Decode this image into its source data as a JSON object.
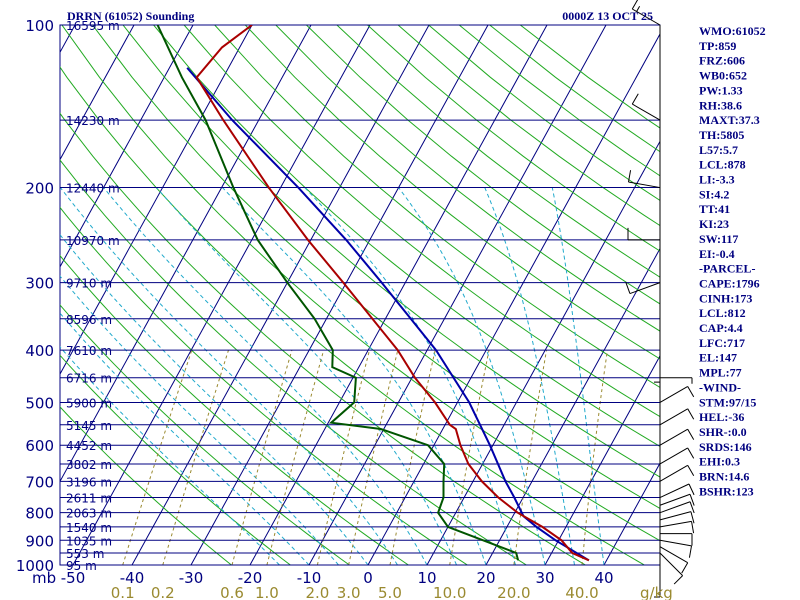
{
  "header": {
    "station": "DRRN (61052) Sounding",
    "time": "0000Z 13 OCT 25"
  },
  "indices": [
    "WMO:61052",
    "TP:859",
    "FRZ:606",
    "WB0:652",
    "PW:1.33",
    "RH:38.6",
    "MAXT:37.3",
    "TH:5805",
    "L57:5.7",
    "LCL:878",
    "LI:-3.3",
    "SI:4.2",
    "TT:41",
    "KI:23",
    "SW:117",
    "EI:-0.4",
    "-PARCEL-",
    "CAPE:1796",
    "CINH:173",
    "LCL:812",
    "CAP:4.4",
    "LFC:717",
    "EL:147",
    "MPL:77",
    "-WIND-",
    "STM:97/15",
    "HEL:-36",
    "SHR-:0.0",
    "SRDS:146",
    "EHI:0.3",
    "BRN:14.6",
    "BSHR:123"
  ],
  "colors": {
    "isobar": "#000080",
    "isotherm": "#000080",
    "dry_adiabat": "#22aa22",
    "moist_adiabat": "#22aacc",
    "mixing_ratio": "#9a8a30",
    "temperature": "#aa0000",
    "dewpoint": "#005500",
    "parcel": "#0000aa",
    "wind": "#000000"
  },
  "chart_data": {
    "type": "skew-t",
    "pressure_axis": {
      "ticks": [
        100,
        200,
        300,
        400,
        500,
        600,
        700,
        800,
        900,
        1000
      ],
      "labels": [
        "100",
        "200",
        "300",
        "400",
        "500",
        "600",
        "700",
        "800",
        "900",
        "1000"
      ],
      "range": [
        100,
        1000
      ],
      "scale": "log"
    },
    "temperature_axis": {
      "unit_label": "mb",
      "ticks": [
        -50,
        -40,
        -30,
        -20,
        -10,
        0,
        10,
        20,
        30,
        40
      ],
      "labels": [
        "-50",
        "-40",
        "-30",
        "-20",
        "-10",
        "0",
        "10",
        "20",
        "30",
        "40"
      ]
    },
    "height_levels": [
      {
        "p": 100,
        "label": "16595 m"
      },
      {
        "p": 150,
        "label": "14230 m"
      },
      {
        "p": 200,
        "label": "12440 m"
      },
      {
        "p": 250,
        "label": "10970 m"
      },
      {
        "p": 300,
        "label": "9710 m"
      },
      {
        "p": 350,
        "label": "8596 m"
      },
      {
        "p": 400,
        "label": "7610 m"
      },
      {
        "p": 450,
        "label": "6716 m"
      },
      {
        "p": 500,
        "label": "5900 m"
      },
      {
        "p": 550,
        "label": "5145 m"
      },
      {
        "p": 600,
        "label": "4452 m"
      },
      {
        "p": 650,
        "label": "3802 m"
      },
      {
        "p": 700,
        "label": "3196 m"
      },
      {
        "p": 750,
        "label": "2611 m"
      },
      {
        "p": 800,
        "label": "2063 m"
      },
      {
        "p": 850,
        "label": "1540 m"
      },
      {
        "p": 900,
        "label": "1035 m"
      },
      {
        "p": 950,
        "label": "553 m"
      },
      {
        "p": 1000,
        "label": "95 m"
      }
    ],
    "mixing_ratio_labels": {
      "values": [
        0.1,
        0.2,
        0.6,
        1.0,
        2.0,
        3.0,
        5.0,
        10.0,
        20.0,
        40.0
      ],
      "labels": [
        "0.1",
        "0.2",
        "0.6",
        "1.0",
        "2.0",
        "3.0",
        "5.0",
        "10.0",
        "20.0",
        "40.0"
      ],
      "unit": "g/kg"
    },
    "temperature": [
      {
        "p": 980,
        "t": 37.0
      },
      {
        "p": 950,
        "t": 33.5
      },
      {
        "p": 900,
        "t": 30.5
      },
      {
        "p": 850,
        "t": 26.0
      },
      {
        "p": 800,
        "t": 20.5
      },
      {
        "p": 750,
        "t": 15.8
      },
      {
        "p": 700,
        "t": 11.5
      },
      {
        "p": 650,
        "t": 7.6
      },
      {
        "p": 600,
        "t": 4.5
      },
      {
        "p": 560,
        "t": 2.2
      },
      {
        "p": 550,
        "t": 0.8
      },
      {
        "p": 500,
        "t": -3.8
      },
      {
        "p": 450,
        "t": -9.5
      },
      {
        "p": 400,
        "t": -15.0
      },
      {
        "p": 350,
        "t": -22.2
      },
      {
        "p": 300,
        "t": -30.5
      },
      {
        "p": 250,
        "t": -40.5
      },
      {
        "p": 200,
        "t": -52.0
      },
      {
        "p": 150,
        "t": -66.0
      },
      {
        "p": 125,
        "t": -74.5
      },
      {
        "p": 110,
        "t": -73.0
      },
      {
        "p": 100,
        "t": -70.0
      }
    ],
    "dewpoint": [
      {
        "p": 980,
        "t": 25.0
      },
      {
        "p": 950,
        "t": 24.0
      },
      {
        "p": 900,
        "t": 17.2
      },
      {
        "p": 850,
        "t": 10.0
      },
      {
        "p": 800,
        "t": 7.0
      },
      {
        "p": 750,
        "t": 6.5
      },
      {
        "p": 700,
        "t": 5.0
      },
      {
        "p": 650,
        "t": 3.5
      },
      {
        "p": 600,
        "t": -1.0
      },
      {
        "p": 560,
        "t": -10.5
      },
      {
        "p": 545,
        "t": -19.5
      },
      {
        "p": 500,
        "t": -17.5
      },
      {
        "p": 450,
        "t": -19.5
      },
      {
        "p": 430,
        "t": -24.5
      },
      {
        "p": 400,
        "t": -26.0
      },
      {
        "p": 350,
        "t": -32.0
      },
      {
        "p": 300,
        "t": -40.0
      },
      {
        "p": 250,
        "t": -49.0
      },
      {
        "p": 200,
        "t": -58.0
      },
      {
        "p": 150,
        "t": -69.0
      },
      {
        "p": 125,
        "t": -77.0
      },
      {
        "p": 100,
        "t": -86.0
      }
    ],
    "parcel": [
      {
        "p": 980,
        "t": 37.0
      },
      {
        "p": 900,
        "t": 29.5
      },
      {
        "p": 850,
        "t": 25.0
      },
      {
        "p": 812,
        "t": 21.8
      },
      {
        "p": 750,
        "t": 18.5
      },
      {
        "p": 700,
        "t": 15.5
      },
      {
        "p": 600,
        "t": 9.5
      },
      {
        "p": 500,
        "t": 2.0
      },
      {
        "p": 400,
        "t": -8.5
      },
      {
        "p": 300,
        "t": -24.0
      },
      {
        "p": 250,
        "t": -34.0
      },
      {
        "p": 200,
        "t": -47.0
      },
      {
        "p": 150,
        "t": -64.5
      },
      {
        "p": 120,
        "t": -77.0
      }
    ],
    "wind_barbs": [
      {
        "p": 1000,
        "spd": 5,
        "dir": 180
      },
      {
        "p": 950,
        "spd": 10,
        "dir": 135
      },
      {
        "p": 925,
        "spd": 10,
        "dir": 120
      },
      {
        "p": 900,
        "spd": 10,
        "dir": 100
      },
      {
        "p": 875,
        "spd": 10,
        "dir": 90
      },
      {
        "p": 850,
        "spd": 10,
        "dir": 80
      },
      {
        "p": 825,
        "spd": 10,
        "dir": 75
      },
      {
        "p": 800,
        "spd": 10,
        "dir": 70
      },
      {
        "p": 775,
        "spd": 10,
        "dir": 70
      },
      {
        "p": 750,
        "spd": 10,
        "dir": 65
      },
      {
        "p": 700,
        "spd": 10,
        "dir": 60
      },
      {
        "p": 650,
        "spd": 10,
        "dir": 60
      },
      {
        "p": 600,
        "spd": 10,
        "dir": 60
      },
      {
        "p": 550,
        "spd": 10,
        "dir": 60
      },
      {
        "p": 500,
        "spd": 10,
        "dir": 60
      },
      {
        "p": 450,
        "spd": 5,
        "dir": 90
      },
      {
        "p": 400,
        "spd": 5,
        "dir": 180
      },
      {
        "p": 300,
        "spd": 10,
        "dir": 250
      },
      {
        "p": 250,
        "spd": 10,
        "dir": 270
      },
      {
        "p": 200,
        "spd": 10,
        "dir": 280
      },
      {
        "p": 150,
        "spd": 10,
        "dir": 300
      },
      {
        "p": 100,
        "spd": 15,
        "dir": 300
      }
    ]
  }
}
